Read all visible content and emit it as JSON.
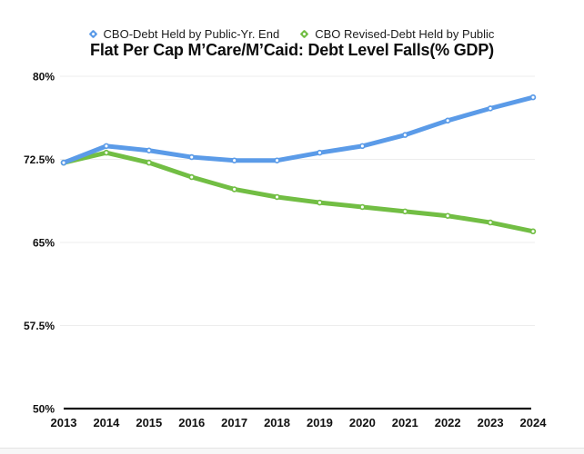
{
  "title": "Flat Per Cap M’Care/M’Caid: Debt Level Falls(% GDP)",
  "legend": {
    "items": [
      {
        "label": "CBO-Debt Held by Public-Yr. End",
        "color": "#5b9be8",
        "marker": "diamond-icon"
      },
      {
        "label": "CBO Revised-Debt Held by Public",
        "color": "#72be44",
        "marker": "diamond-icon"
      }
    ]
  },
  "chart_data": {
    "type": "line",
    "title": "Flat Per Cap M’Care/M’Caid: Debt Level Falls(% GDP)",
    "xlabel": "",
    "ylabel": "",
    "categories": [
      "2013",
      "2014",
      "2015",
      "2016",
      "2017",
      "2018",
      "2019",
      "2020",
      "2021",
      "2022",
      "2023",
      "2024"
    ],
    "series": [
      {
        "name": "CBO-Debt Held by Public-Yr. End",
        "color": "#5b9be8",
        "values": [
          72.2,
          73.7,
          73.3,
          72.7,
          72.4,
          72.4,
          73.1,
          73.7,
          74.7,
          76.0,
          77.1,
          78.1
        ]
      },
      {
        "name": "CBO Revised-Debt Held by Public",
        "color": "#72be44",
        "values": [
          72.2,
          73.1,
          72.2,
          70.9,
          69.8,
          69.1,
          68.6,
          68.2,
          67.8,
          67.4,
          66.8,
          66.0
        ]
      }
    ],
    "yticks": [
      {
        "value": 80,
        "label": "80%"
      },
      {
        "value": 72.5,
        "label": "72.5%"
      },
      {
        "value": 65,
        "label": "65%"
      },
      {
        "value": 57.5,
        "label": "57.5%"
      },
      {
        "value": 50,
        "label": "50%"
      }
    ],
    "ylim": [
      50,
      80
    ],
    "grid": true,
    "legend_position": "top",
    "gridline_color": "#ededed",
    "axis_color": "#111111",
    "marker_style": "hollow-circle"
  }
}
